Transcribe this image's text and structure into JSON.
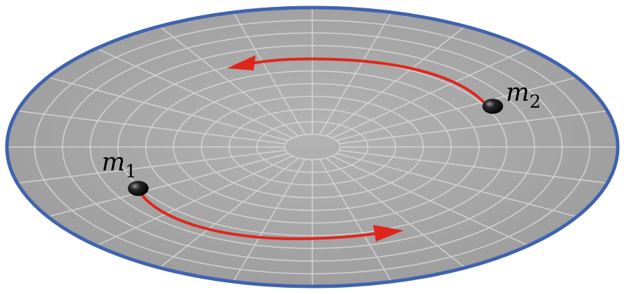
{
  "diagram": {
    "colors": {
      "disk_fill": "#a9a9a9",
      "disk_border": "#3f63b0",
      "grid": "#d9d9d9",
      "arrow": "#e0251b",
      "ball": "#151515"
    },
    "masses": [
      {
        "symbol": "m",
        "subscript": "1"
      },
      {
        "symbol": "m",
        "subscript": "2"
      }
    ],
    "motion": "counterclockwise"
  }
}
